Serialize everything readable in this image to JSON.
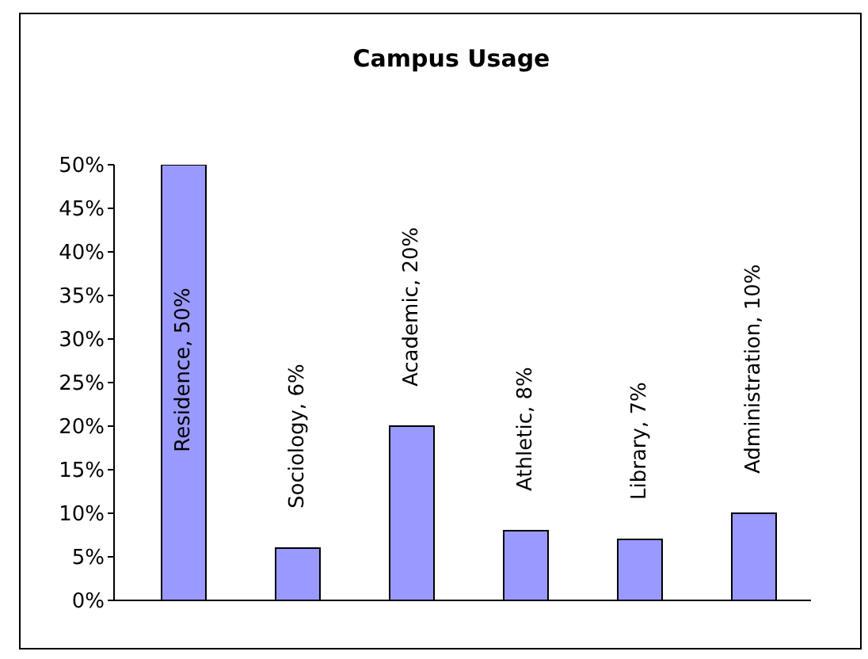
{
  "chart_data": {
    "type": "bar",
    "title": "Campus Usage",
    "categories": [
      null,
      null,
      null,
      null,
      null,
      null
    ],
    "values": [
      50,
      6,
      20,
      8,
      7,
      10
    ],
    "color": "#9999ff",
    "value_labels": [
      "Residence, 50%",
      "Sociology, 6%",
      "Academic, 20%",
      "Athletic, 8%",
      "Library, 7%",
      "Administration, 10%"
    ],
    "ylim": [
      0,
      50
    ],
    "yticks": [
      {
        "value": 0,
        "label": "0%"
      },
      {
        "value": 5,
        "label": "5%"
      },
      {
        "value": 10,
        "label": "10%"
      },
      {
        "value": 15,
        "label": "15%"
      },
      {
        "value": 20,
        "label": "20%"
      },
      {
        "value": 25,
        "label": "25%"
      },
      {
        "value": 30,
        "label": "30%"
      },
      {
        "value": 35,
        "label": "35%"
      },
      {
        "value": 40,
        "label": "40%"
      },
      {
        "value": 45,
        "label": "45%"
      },
      {
        "value": 50,
        "label": "50%"
      }
    ],
    "tick_labels": "y"
  }
}
